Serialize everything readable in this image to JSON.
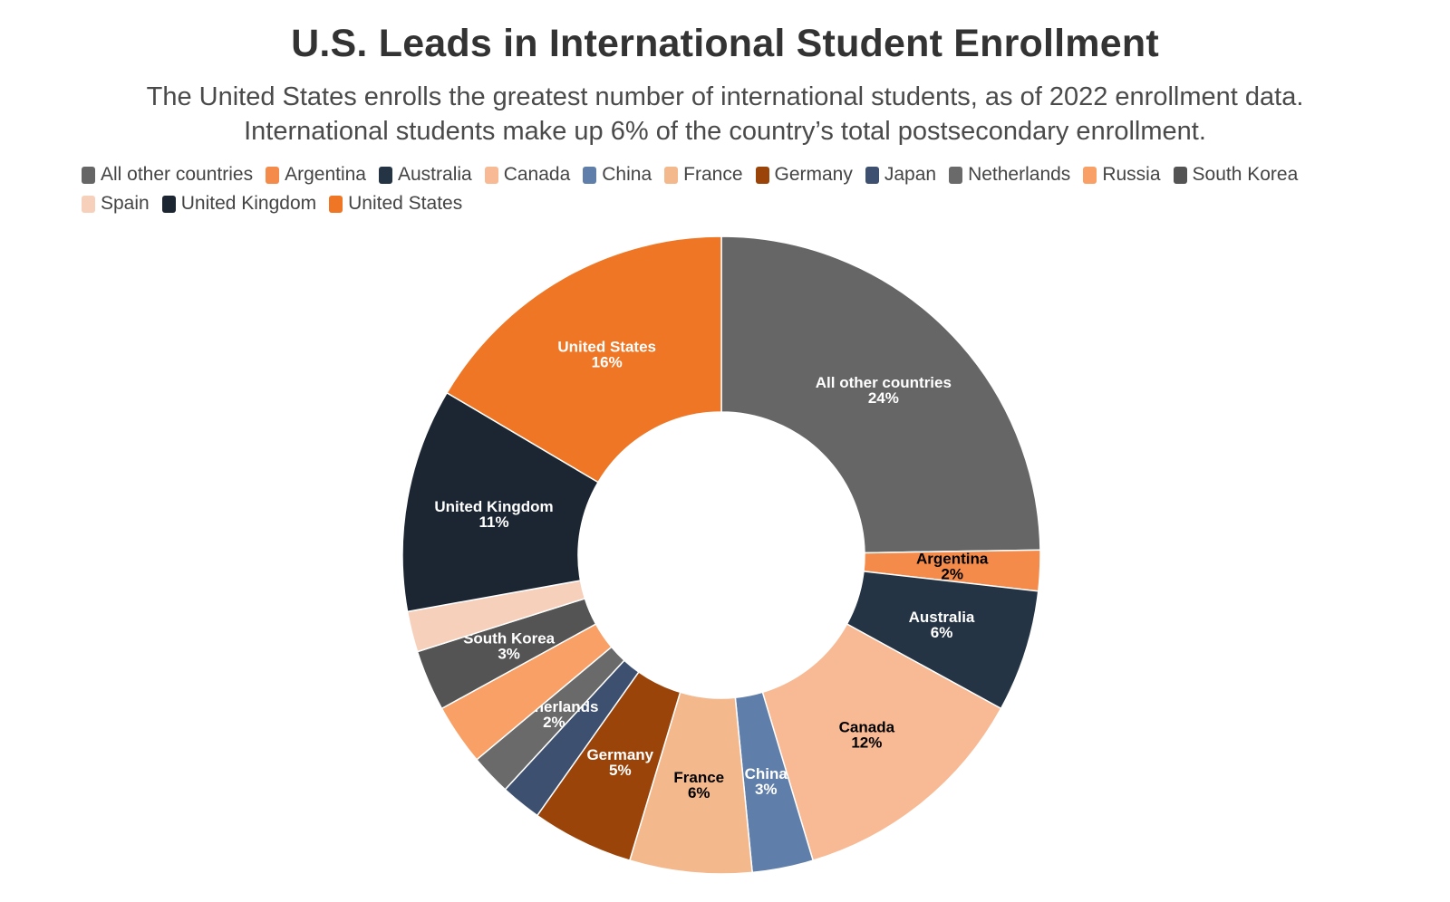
{
  "title": "U.S. Leads in International Student Enrollment",
  "subtitle": "The United States enrolls the greatest number of international students, as of 2022 enrollment data. International students make up 6% of the country’s total postsecondary enrollment.",
  "chart_data": {
    "type": "pie",
    "title": "U.S. Leads in International Student Enrollment",
    "donut": true,
    "legend_placement": "top",
    "legend": [
      "All other countries",
      "Argentina",
      "Australia",
      "Canada",
      "China",
      "France",
      "Germany",
      "Japan",
      "Netherlands",
      "Russia",
      "South Korea",
      "Spain",
      "United Kingdom",
      "United States"
    ],
    "slices": [
      {
        "label": "All other countries",
        "value": 24,
        "display": "24%",
        "color": "#666666",
        "text_color": "#ffffff",
        "show_label": true
      },
      {
        "label": "Argentina",
        "value": 2,
        "display": "2%",
        "color": "#F58B4B",
        "text_color": "#000000",
        "show_label": true
      },
      {
        "label": "Australia",
        "value": 6,
        "display": "6%",
        "color": "#243444",
        "text_color": "#ffffff",
        "show_label": true
      },
      {
        "label": "Canada",
        "value": 12,
        "display": "12%",
        "color": "#F8BA94",
        "text_color": "#000000",
        "show_label": true
      },
      {
        "label": "China",
        "value": 3,
        "display": "3%",
        "color": "#5F7EA9",
        "text_color": "#ffffff",
        "show_label": true
      },
      {
        "label": "France",
        "value": 6,
        "display": "6%",
        "color": "#F4B88D",
        "text_color": "#000000",
        "show_label": true
      },
      {
        "label": "Germany",
        "value": 5,
        "display": "5%",
        "color": "#9A4409",
        "text_color": "#ffffff",
        "show_label": true
      },
      {
        "label": "Japan",
        "value": 2,
        "display": "2%",
        "color": "#3D5070",
        "text_color": "#ffffff",
        "show_label": false
      },
      {
        "label": "Netherlands",
        "value": 2,
        "display": "2%",
        "color": "#6A6A6A",
        "text_color": "#ffffff",
        "show_label": true
      },
      {
        "label": "Russia",
        "value": 3,
        "display": "3%",
        "color": "#F9A066",
        "text_color": "#ffffff",
        "show_label": false
      },
      {
        "label": "South Korea",
        "value": 3,
        "display": "3%",
        "color": "#545454",
        "text_color": "#ffffff",
        "show_label": true
      },
      {
        "label": "Spain",
        "value": 2,
        "display": "2%",
        "color": "#F6D0BA",
        "text_color": "#000000",
        "show_label": false
      },
      {
        "label": "United Kingdom",
        "value": 11,
        "display": "11%",
        "color": "#1C2633",
        "text_color": "#ffffff",
        "show_label": true
      },
      {
        "label": "United States",
        "value": 16,
        "display": "16%",
        "color": "#EE7624",
        "text_color": "#ffffff",
        "show_label": true
      }
    ]
  }
}
